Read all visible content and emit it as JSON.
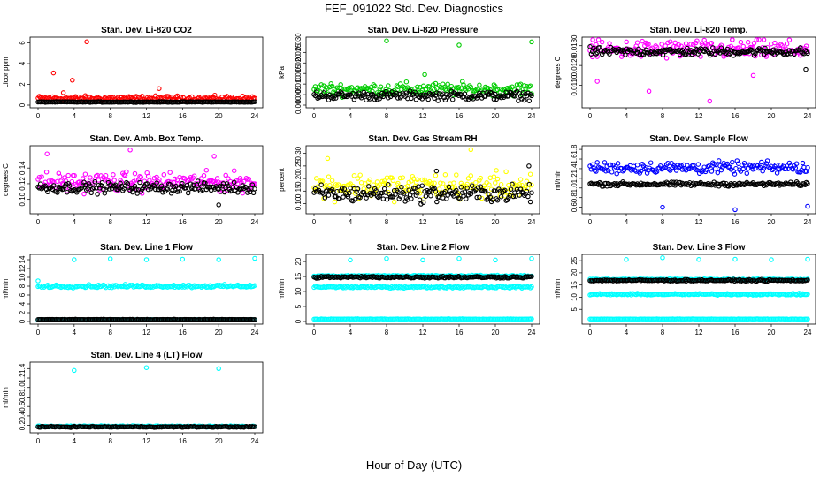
{
  "figure": {
    "title": "FEF_091022  Std. Dev. Diagnostics",
    "xlabel": "Hour of Day (UTC)"
  },
  "colors": {
    "red": "#ff0000",
    "green": "#00cc00",
    "magenta": "#ff00ff",
    "yellow": "#ffff00",
    "blue": "#0000ff",
    "cyan": "#00ffff",
    "black": "#000000"
  },
  "chart_data": [
    {
      "type": "scatter",
      "title": "Stan. Dev. Li-820 CO2",
      "ylabel": "Licor ppm",
      "xlim": [
        0,
        24
      ],
      "ylim": [
        0,
        6.3
      ],
      "xticks": [
        "0",
        "4",
        "8",
        "12",
        "16",
        "20",
        "24"
      ],
      "yticks": [
        0,
        2,
        4,
        6
      ],
      "ytick_labels": [
        "0",
        "2",
        "4",
        "6"
      ],
      "series": [
        {
          "color": "red",
          "base": 0.65,
          "spread": 0.35,
          "outliers": [
            [
              5.4,
              6.1
            ],
            [
              3.8,
              2.4
            ],
            [
              1.7,
              3.1
            ],
            [
              13.4,
              1.6
            ],
            [
              2.8,
              1.2
            ]
          ]
        },
        {
          "color": "black",
          "base": 0.3,
          "spread": 0.05,
          "outliers": []
        }
      ]
    },
    {
      "type": "scatter",
      "title": "Stan. Dev. Li-820 Pressure",
      "ylabel": "kPa",
      "xlim": [
        0,
        24
      ],
      "ylim": [
        0,
        0.031
      ],
      "xticks": [
        "0",
        "4",
        "8",
        "12",
        "16",
        "20",
        "24"
      ],
      "yticks": [
        0,
        0.005,
        0.015,
        0.025
      ],
      "ytick_labels": [
        "0.000",
        "0.005",
        "0.015",
        "0.025"
      ],
      "yticks_minor": [
        0.01,
        0.02,
        0.03
      ],
      "ytick_labels_minor": [
        "0.010",
        "0.020",
        "0.030"
      ],
      "series": [
        {
          "color": "green",
          "base": 0.0075,
          "spread": 0.0045,
          "outliers": [
            [
              8.0,
              0.0305
            ],
            [
              16.0,
              0.0285
            ],
            [
              24.0,
              0.03
            ],
            [
              12.2,
              0.0145
            ]
          ]
        },
        {
          "color": "black",
          "base": 0.0045,
          "spread": 0.003,
          "outliers": []
        }
      ]
    },
    {
      "type": "scatter",
      "title": "Stan. Dev. Li-820 Temp.",
      "ylabel": "degrees C",
      "xlim": [
        0,
        24
      ],
      "ylim": [
        0.01,
        0.0133
      ],
      "xticks": [
        "0",
        "4",
        "8",
        "12",
        "16",
        "20",
        "24"
      ],
      "yticks": [
        0.011,
        0.013
      ],
      "ytick_labels": [
        "0.0110",
        "0.0130"
      ],
      "yticks_minor": [
        0.012
      ],
      "ytick_labels_minor": [
        "0.0120"
      ],
      "series": [
        {
          "color": "magenta",
          "base": 0.0128,
          "spread": 0.0007,
          "outliers": [
            [
              0.3,
              0.0133
            ],
            [
              15.7,
              0.0133
            ],
            [
              6.5,
              0.0107
            ],
            [
              13.2,
              0.0102
            ],
            [
              0.8,
              0.0112
            ],
            [
              18.0,
              0.0115
            ]
          ]
        },
        {
          "color": "black",
          "base": 0.0127,
          "spread": 0.0003,
          "outliers": [
            [
              23.8,
              0.0118
            ]
          ]
        }
      ]
    },
    {
      "type": "scatter",
      "title": "Stan. Dev. Amb. Box Temp.",
      "ylabel": "degrees C",
      "xlim": [
        0,
        24
      ],
      "ylim": [
        0.085,
        0.165
      ],
      "xticks": [
        "0",
        "4",
        "8",
        "12",
        "16",
        "20",
        "24"
      ],
      "yticks": [
        0.1,
        0.12,
        0.14
      ],
      "ytick_labels": [
        "0.10",
        "0.12",
        "0.14"
      ],
      "series": [
        {
          "color": "magenta",
          "base": 0.122,
          "spread": 0.018,
          "outliers": [
            [
              10.2,
              0.163
            ],
            [
              1.0,
              0.158
            ],
            [
              19.5,
              0.155
            ]
          ]
        },
        {
          "color": "black",
          "base": 0.115,
          "spread": 0.01,
          "outliers": [
            [
              20.0,
              0.093
            ]
          ]
        }
      ]
    },
    {
      "type": "scatter",
      "title": "Stan. Dev. Gas Stream RH",
      "ylabel": "percent",
      "xlim": [
        0,
        24
      ],
      "ylim": [
        0.07,
        0.32
      ],
      "xticks": [
        "0",
        "4",
        "8",
        "12",
        "16",
        "20",
        "24"
      ],
      "yticks": [
        0.1,
        0.15,
        0.2,
        0.25,
        0.3
      ],
      "ytick_labels": [
        "0.10",
        "0.15",
        "0.20",
        "0.25",
        "0.30"
      ],
      "series": [
        {
          "color": "yellow",
          "base": 0.17,
          "spread": 0.075,
          "outliers": [
            [
              17.3,
              0.315
            ],
            [
              1.5,
              0.28
            ]
          ]
        },
        {
          "color": "black",
          "base": 0.14,
          "spread": 0.05,
          "outliers": [
            [
              23.7,
              0.25
            ],
            [
              13.5,
              0.23
            ]
          ]
        }
      ]
    },
    {
      "type": "scatter",
      "title": "Stan. Dev. Sample Flow",
      "ylabel": "ml/min",
      "xlim": [
        0,
        24
      ],
      "ylim": [
        0.52,
        1.82
      ],
      "xticks": [
        "0",
        "4",
        "8",
        "12",
        "16",
        "20",
        "24"
      ],
      "yticks": [
        0.6,
        1.0,
        1.4,
        1.8
      ],
      "ytick_labels": [
        "0.6",
        "1.0",
        "1.4",
        "1.8"
      ],
      "yticks_minor": [
        0.8,
        1.2,
        1.6
      ],
      "ytick_labels_minor": [
        "0.8",
        "1.2",
        "1.6"
      ],
      "series": [
        {
          "color": "blue",
          "base": 1.42,
          "spread": 0.18,
          "outliers": [
            [
              8.0,
              0.6
            ],
            [
              16.0,
              0.55
            ],
            [
              24.0,
              0.62
            ]
          ]
        },
        {
          "color": "black",
          "base": 1.08,
          "spread": 0.06,
          "outliers": []
        }
      ]
    },
    {
      "type": "scatter",
      "title": "Stan. Dev. Line 1 Flow",
      "ylabel": "ml/min",
      "xlim": [
        0,
        24
      ],
      "ylim": [
        0,
        14.6
      ],
      "xticks": [
        "0",
        "4",
        "8",
        "12",
        "16",
        "20",
        "24"
      ],
      "yticks": [
        0,
        2,
        4,
        6,
        8,
        10,
        12,
        14
      ],
      "ytick_labels": [
        "0",
        "2",
        "4",
        "6",
        "8",
        "10",
        "12",
        "14"
      ],
      "series": [
        {
          "color": "cyan",
          "base": 8.0,
          "spread": 0.5,
          "outliers": [
            [
              4.0,
              14.0
            ],
            [
              8.0,
              14.2
            ],
            [
              12.0,
              14.0
            ],
            [
              16.0,
              14.1
            ],
            [
              20.0,
              14.0
            ],
            [
              24.0,
              14.3
            ],
            [
              0.0,
              9.2
            ]
          ]
        },
        {
          "color": "cyan",
          "base": 0.4,
          "spread": 0.1,
          "outliers": []
        },
        {
          "color": "black",
          "base": 0.45,
          "spread": 0.08,
          "outliers": []
        }
      ]
    },
    {
      "type": "scatter",
      "title": "Stan. Dev. Line 2 Flow",
      "ylabel": "ml/min",
      "xlim": [
        0,
        24
      ],
      "ylim": [
        0,
        21.5
      ],
      "xticks": [
        "0",
        "4",
        "8",
        "12",
        "16",
        "20",
        "24"
      ],
      "yticks": [
        0,
        5,
        10,
        15,
        20
      ],
      "ytick_labels": [
        "0",
        "5",
        "10",
        "15",
        "20"
      ],
      "series": [
        {
          "color": "cyan",
          "base": 11.5,
          "spread": 0.5,
          "outliers": [
            [
              4.0,
              20.5
            ],
            [
              8.0,
              21.0
            ],
            [
              12.0,
              20.5
            ],
            [
              16.0,
              21.0
            ],
            [
              20.0,
              20.5
            ],
            [
              24.0,
              21.0
            ]
          ]
        },
        {
          "color": "cyan",
          "base": 15.2,
          "spread": 0.4,
          "outliers": []
        },
        {
          "color": "cyan",
          "base": 0.8,
          "spread": 0.15,
          "outliers": []
        },
        {
          "color": "black",
          "base": 14.8,
          "spread": 0.5,
          "outliers": []
        }
      ]
    },
    {
      "type": "scatter",
      "title": "Stan. Dev. Line 3 Flow",
      "ylabel": "ml/min",
      "xlim": [
        0,
        24
      ],
      "ylim": [
        0,
        26.5
      ],
      "xticks": [
        "0",
        "4",
        "8",
        "12",
        "16",
        "20",
        "24"
      ],
      "yticks": [
        5,
        10,
        15,
        20,
        25
      ],
      "ytick_labels": [
        "5",
        "10",
        "15",
        "20",
        "25"
      ],
      "series": [
        {
          "color": "cyan",
          "base": 11.2,
          "spread": 0.5,
          "outliers": [
            [
              4.0,
              25.5
            ],
            [
              8.0,
              26.2
            ],
            [
              12.0,
              25.5
            ],
            [
              16.0,
              25.6
            ],
            [
              20.0,
              25.4
            ],
            [
              24.0,
              25.6
            ]
          ]
        },
        {
          "color": "cyan",
          "base": 17.3,
          "spread": 0.4,
          "outliers": []
        },
        {
          "color": "cyan",
          "base": 1.0,
          "spread": 0.15,
          "outliers": []
        },
        {
          "color": "black",
          "base": 16.9,
          "spread": 0.5,
          "outliers": []
        }
      ]
    },
    {
      "type": "scatter",
      "title": "Stan. Dev. Line 4 (LT) Flow",
      "ylabel": "ml/min",
      "xlim": [
        0,
        24
      ],
      "ylim": [
        0.1,
        1.48
      ],
      "xticks": [
        "0",
        "4",
        "8",
        "12",
        "16",
        "20",
        "24"
      ],
      "yticks": [
        0.2,
        0.4,
        0.6,
        0.8,
        1.0,
        1.2,
        1.4
      ],
      "ytick_labels": [
        "0.2",
        "0.4",
        "0.6",
        "0.8",
        "1.0",
        "1.2",
        "1.4"
      ],
      "series": [
        {
          "color": "cyan",
          "base": 0.18,
          "spread": 0.02,
          "outliers": [
            [
              4.0,
              1.36
            ],
            [
              12.0,
              1.42
            ],
            [
              20.0,
              1.4
            ]
          ]
        },
        {
          "color": "black",
          "base": 0.17,
          "spread": 0.015,
          "outliers": []
        }
      ]
    }
  ]
}
